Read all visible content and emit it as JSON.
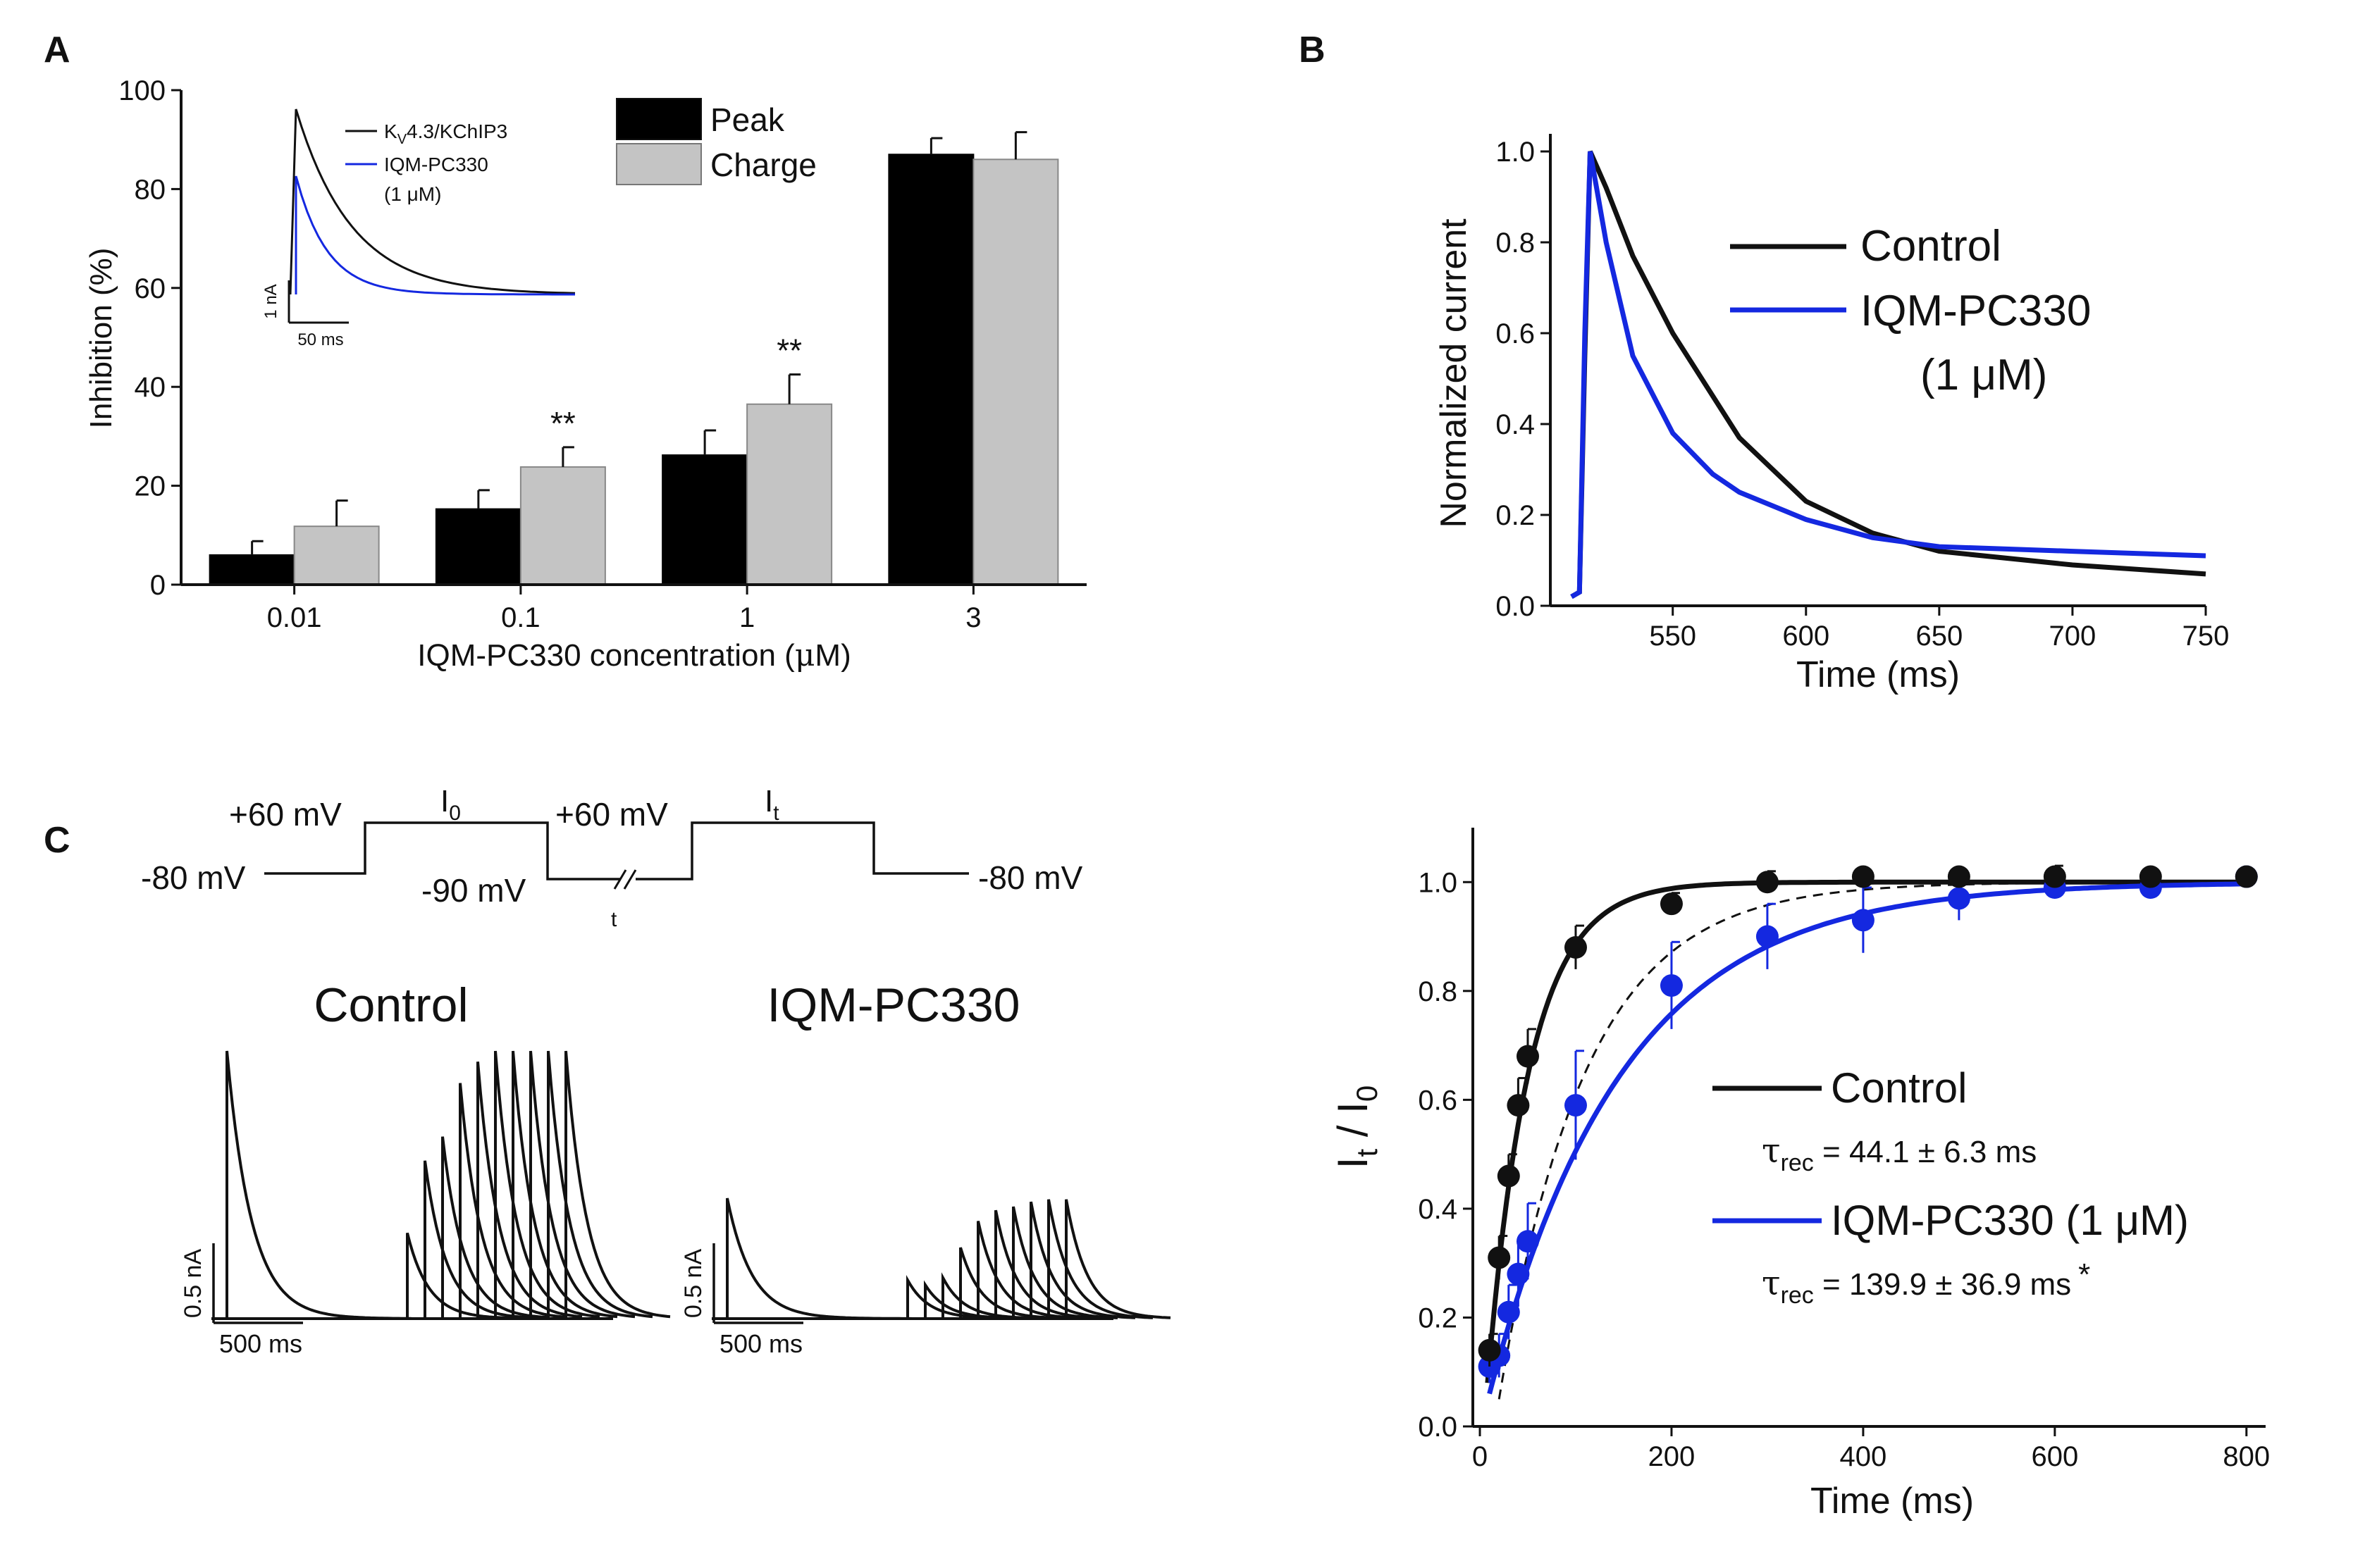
{
  "panel_labels": {
    "a": "A",
    "b": "B",
    "c": "C"
  },
  "colors": {
    "peak": "#000000",
    "charge": "#c4c4c4",
    "control": "#111111",
    "drug": "#1428e0",
    "axis": "#111111"
  },
  "chart_data": [
    {
      "id": "A",
      "type": "bar",
      "title": "",
      "xlabel_pre": "IQM-PC330 concentration (",
      "xlabel_mu": "μ",
      "xlabel_post": "M)",
      "ylabel": "Inhibition (%)",
      "ylim": [
        0,
        100
      ],
      "yticks": [
        0,
        20,
        40,
        60,
        80,
        100
      ],
      "categories": [
        "0.01",
        "0.1",
        "1",
        "3"
      ],
      "series": [
        {
          "name": "Peak",
          "values": [
            6,
            15.3,
            26.2,
            87
          ],
          "errors": [
            2.8,
            3.8,
            5.0,
            3.3
          ]
        },
        {
          "name": "Charge",
          "values": [
            11.8,
            23.8,
            36.5,
            86
          ],
          "errors": [
            5.2,
            4.0,
            6.0,
            5.5
          ]
        }
      ],
      "significance": [
        {
          "label": "**",
          "category": 1,
          "series": 1
        },
        {
          "label": "**",
          "category": 2,
          "series": 1
        }
      ],
      "legend": [
        "Peak",
        "Charge"
      ],
      "inset": {
        "type": "line",
        "legend_k": "K",
        "legend_sub": "V",
        "legend_rest": "4.3/KChIP3",
        "legend_drug": "IQM-PC330",
        "legend_conc": "(1 μM)",
        "scale_y": "1 nA",
        "scale_x": "50 ms"
      }
    },
    {
      "id": "B",
      "type": "line",
      "xlabel": "Time (ms)",
      "ylabel": "Normalized current",
      "xlim": [
        512,
        750
      ],
      "ylim": [
        0,
        1.0
      ],
      "xticks": [
        550,
        600,
        650,
        700,
        750
      ],
      "yticks": [
        "0.0",
        "0.2",
        "0.4",
        "0.6",
        "0.8",
        "1.0"
      ],
      "legend": [
        "Control",
        "IQM-PC330",
        "(1 μM)"
      ],
      "series": [
        {
          "name": "Control",
          "x": [
            512,
            515,
            517,
            519,
            525,
            535,
            550,
            575,
            600,
            625,
            650,
            700,
            750
          ],
          "y": [
            0.02,
            0.03,
            0.55,
            1.0,
            0.92,
            0.77,
            0.6,
            0.37,
            0.23,
            0.16,
            0.12,
            0.09,
            0.07
          ]
        },
        {
          "name": "IQM-PC330",
          "x": [
            512,
            515,
            517,
            519,
            525,
            535,
            550,
            565,
            575,
            600,
            625,
            650,
            700,
            750
          ],
          "y": [
            0.02,
            0.03,
            0.6,
            1.0,
            0.8,
            0.55,
            0.38,
            0.29,
            0.25,
            0.19,
            0.15,
            0.13,
            0.12,
            0.11
          ]
        }
      ]
    },
    {
      "id": "C",
      "type": "scatter",
      "xlabel": "Time (ms)",
      "ylabel_main": "I",
      "ylabel_sub1": "t",
      "ylabel_mid": " / I",
      "ylabel_sub2": "0",
      "xlim": [
        0,
        820
      ],
      "ylim": [
        0,
        1.1
      ],
      "xticks": [
        0,
        200,
        400,
        600,
        800
      ],
      "yticks": [
        "0.0",
        "0.2",
        "0.4",
        "0.6",
        "0.8",
        "1.0"
      ],
      "legend": [
        "Control",
        "IQM-PC330 (1 μM)"
      ],
      "tau_sym": "τ",
      "tau_sub": "rec",
      "tau_control": " = 44.1 ± 6.3 ms",
      "tau_drug": " = 139.9 ± 36.9 ms",
      "tau_star": "*",
      "fit_tau": [
        44.1,
        139.9
      ],
      "series": [
        {
          "name": "Control",
          "x": [
            10,
            20,
            30,
            40,
            50,
            100,
            200,
            300,
            400,
            500,
            600,
            700,
            800
          ],
          "y": [
            0.14,
            0.31,
            0.46,
            0.59,
            0.68,
            0.88,
            0.96,
            1.0,
            1.01,
            1.01,
            1.01,
            1.01,
            1.01
          ],
          "errors": [
            0.03,
            0.04,
            0.04,
            0.05,
            0.05,
            0.04,
            0.02,
            0.02,
            0.01,
            0.01,
            0.02,
            0.01,
            0.01
          ]
        },
        {
          "name": "IQM-PC330",
          "x": [
            10,
            20,
            30,
            40,
            50,
            100,
            200,
            300,
            400,
            500,
            600,
            700,
            800
          ],
          "y": [
            0.11,
            0.13,
            0.21,
            0.28,
            0.34,
            0.59,
            0.81,
            0.9,
            0.93,
            0.97,
            0.99,
            0.99,
            1.01
          ],
          "errors": [
            0.03,
            0.04,
            0.05,
            0.06,
            0.07,
            0.1,
            0.08,
            0.06,
            0.06,
            0.04,
            0.02,
            0.02,
            0.01
          ]
        }
      ]
    }
  ],
  "protocol": {
    "v_hold_left": "-80 mV",
    "v_step1": "+60 mV",
    "i0_main": "I",
    "i0_sub": "0",
    "v_inter": "-90 mV",
    "v_step2": "+60 mV",
    "it_main": "I",
    "it_sub": "t",
    "t_label": "t",
    "v_hold_right": "-80 mV"
  },
  "traces": {
    "control_title": "Control",
    "drug_title": "IQM-PC330",
    "scale_nA": "0.5 nA",
    "scale_ms": "500 ms",
    "control_amp": 1.0,
    "drug_amp": 0.45
  }
}
